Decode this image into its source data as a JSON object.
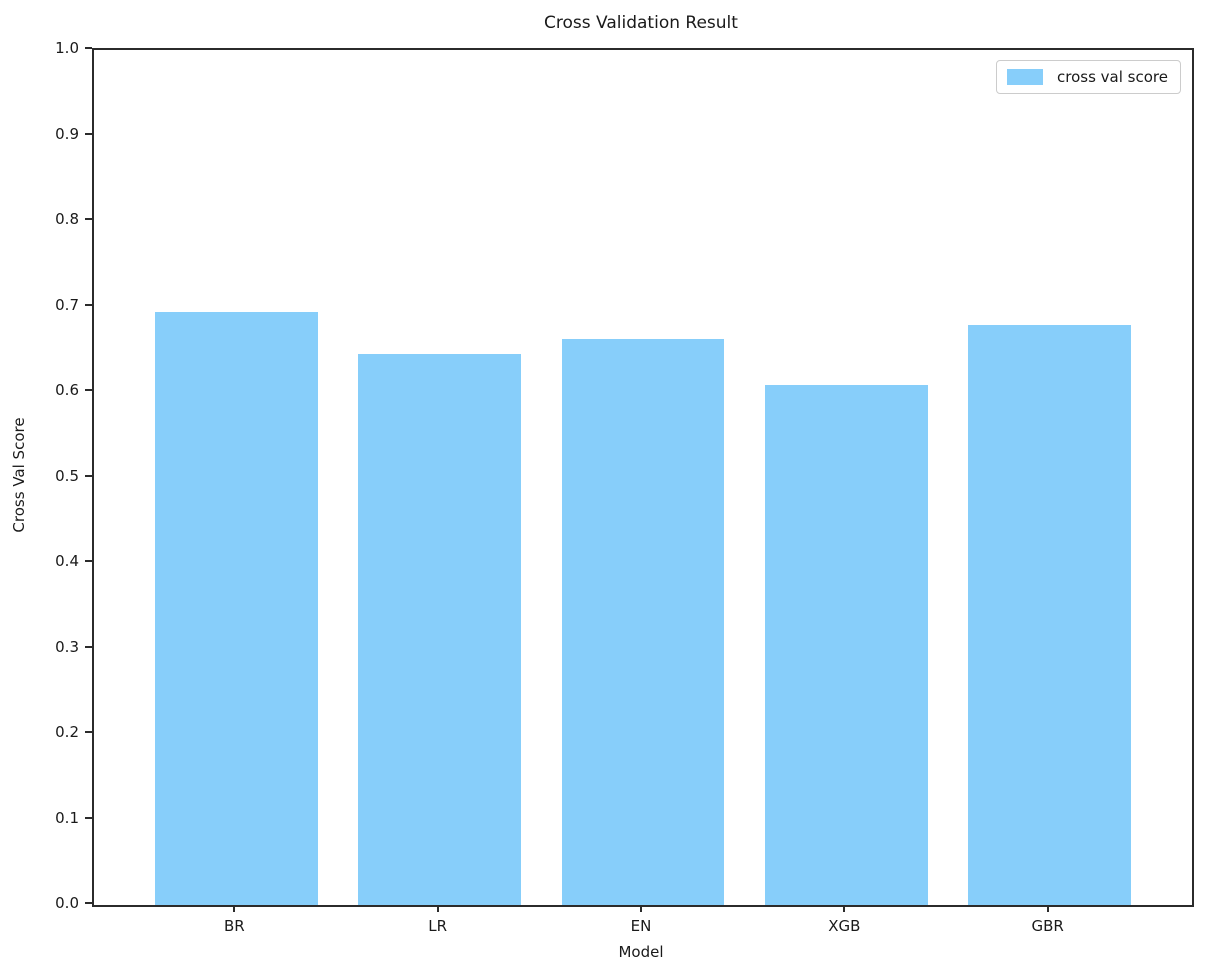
{
  "chart_data": {
    "type": "bar",
    "title": "Cross Validation Result",
    "xlabel": "Model",
    "ylabel": "Cross Val Score",
    "categories": [
      "BR",
      "LR",
      "EN",
      "XGB",
      "GBR"
    ],
    "series": [
      {
        "name": "cross val score",
        "values": [
          0.694,
          0.645,
          0.662,
          0.608,
          0.678
        ]
      }
    ],
    "ylim": [
      0.0,
      1.0
    ],
    "yticks": [
      0.0,
      0.1,
      0.2,
      0.3,
      0.4,
      0.5,
      0.6,
      0.7,
      0.8,
      0.9,
      1.0
    ],
    "ytick_decimals": 1,
    "legend": {
      "label": "cross val score",
      "position": "upper right"
    },
    "bar_color": "#87CEFA",
    "axis_color": "#2b2b2b",
    "grid": false,
    "bar_width_fraction": 0.8,
    "x_margin": 0.7
  }
}
